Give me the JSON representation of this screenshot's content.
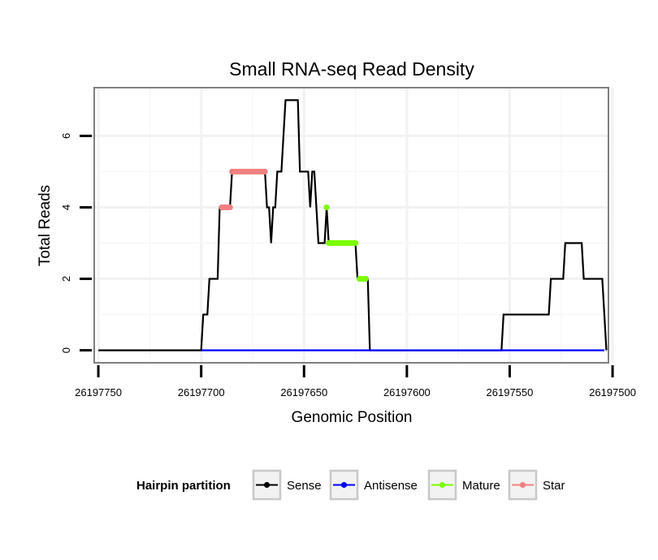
{
  "chart_data": {
    "type": "line",
    "title": "Small RNA-seq Read Density",
    "xlabel": "Genomic Position",
    "ylabel": "Total Reads",
    "x_reversed": true,
    "xlim": [
      26197752,
      26197502
    ],
    "ylim": [
      -0.35,
      7.35
    ],
    "x_ticks": [
      26197750,
      26197700,
      26197650,
      26197600,
      26197550,
      26197500
    ],
    "x_tick_labels": [
      "26197750",
      "26197700",
      "26197650",
      "26197600",
      "26197550",
      "26197500"
    ],
    "y_ticks": [
      0,
      2,
      4,
      6
    ],
    "y_tick_labels": [
      "0",
      "2",
      "4",
      "6"
    ],
    "grid": true,
    "legend_position": "bottom",
    "legend": {
      "title": "Hairpin partition",
      "entries": [
        {
          "label": "Sense",
          "color": "#000000"
        },
        {
          "label": "Antisense",
          "color": "#0000FF"
        },
        {
          "label": "Mature",
          "color": "#7CFC00"
        },
        {
          "label": "Star",
          "color": "#F08080"
        }
      ]
    },
    "series": [
      {
        "name": "Sense",
        "color": "#000000",
        "points": [
          [
            26197750,
            0
          ],
          [
            26197700,
            0
          ],
          [
            26197699,
            1
          ],
          [
            26197697,
            1
          ],
          [
            26197696,
            2
          ],
          [
            26197692,
            2
          ],
          [
            26197691,
            4
          ],
          [
            26197686,
            4
          ],
          [
            26197685,
            5
          ],
          [
            26197669,
            5
          ],
          [
            26197668,
            4
          ],
          [
            26197667,
            4
          ],
          [
            26197666,
            3
          ],
          [
            26197665,
            4
          ],
          [
            26197664,
            4
          ],
          [
            26197663,
            5
          ],
          [
            26197661,
            5
          ],
          [
            26197660,
            6
          ],
          [
            26197659,
            7
          ],
          [
            26197653,
            7
          ],
          [
            26197652,
            5
          ],
          [
            26197648,
            5
          ],
          [
            26197647,
            4
          ],
          [
            26197646,
            5
          ],
          [
            26197645,
            5
          ],
          [
            26197644,
            4
          ],
          [
            26197643,
            3
          ],
          [
            26197640,
            3
          ],
          [
            26197639,
            4
          ],
          [
            26197638,
            3
          ],
          [
            26197625,
            3
          ],
          [
            26197624,
            2
          ],
          [
            26197619,
            2
          ],
          [
            26197618,
            0
          ],
          [
            26197554,
            0
          ],
          [
            26197553,
            1
          ],
          [
            26197531,
            1
          ],
          [
            26197530,
            2
          ],
          [
            26197524,
            2
          ],
          [
            26197523,
            3
          ],
          [
            26197515,
            3
          ],
          [
            26197514,
            2
          ],
          [
            26197505,
            2
          ],
          [
            26197504,
            1
          ],
          [
            26197503,
            0
          ]
        ]
      },
      {
        "name": "Antisense",
        "color": "#0000FF",
        "points": [
          [
            26197700,
            0
          ],
          [
            26197504,
            0
          ]
        ]
      },
      {
        "name": "Mature",
        "color": "#7CFC00",
        "points": [
          [
            26197639,
            4
          ],
          [
            26197638,
            3
          ],
          [
            26197637,
            3
          ],
          [
            26197636,
            3
          ],
          [
            26197635,
            3
          ],
          [
            26197634,
            3
          ],
          [
            26197633,
            3
          ],
          [
            26197632,
            3
          ],
          [
            26197631,
            3
          ],
          [
            26197630,
            3
          ],
          [
            26197629,
            3
          ],
          [
            26197628,
            3
          ],
          [
            26197627,
            3
          ],
          [
            26197626,
            3
          ],
          [
            26197625,
            3
          ],
          [
            26197623,
            2
          ],
          [
            26197622,
            2
          ],
          [
            26197621,
            2
          ],
          [
            26197620,
            2
          ]
        ]
      },
      {
        "name": "Star",
        "color": "#F08080",
        "points": [
          [
            26197690,
            4
          ],
          [
            26197689,
            4
          ],
          [
            26197688,
            4
          ],
          [
            26197687,
            4
          ],
          [
            26197686,
            4
          ],
          [
            26197685,
            5
          ],
          [
            26197684,
            5
          ],
          [
            26197683,
            5
          ],
          [
            26197682,
            5
          ],
          [
            26197681,
            5
          ],
          [
            26197680,
            5
          ],
          [
            26197679,
            5
          ],
          [
            26197678,
            5
          ],
          [
            26197677,
            5
          ],
          [
            26197676,
            5
          ],
          [
            26197675,
            5
          ],
          [
            26197674,
            5
          ],
          [
            26197673,
            5
          ],
          [
            26197672,
            5
          ],
          [
            26197671,
            5
          ],
          [
            26197670,
            5
          ],
          [
            26197669,
            5
          ]
        ]
      }
    ]
  }
}
